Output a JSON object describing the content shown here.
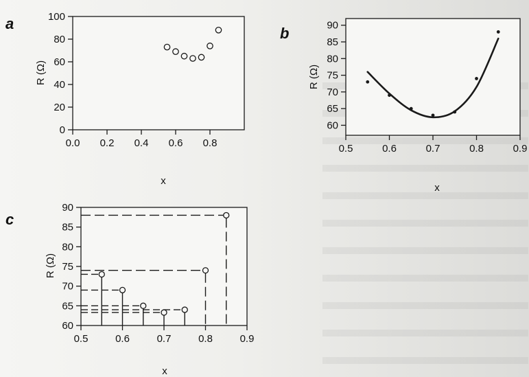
{
  "panels": [
    {
      "label": "a",
      "chart_data": {
        "type": "scatter",
        "xlabel": "x",
        "ylabel": "R (Ω)",
        "xlim": [
          0.0,
          1.0
        ],
        "ylim": [
          0,
          100
        ],
        "xticks": [
          "0.0",
          "0.2",
          "0.4",
          "0.6",
          "0.8"
        ],
        "yticks": [
          "0",
          "20",
          "40",
          "60",
          "80",
          "100"
        ],
        "marker": "open-circle",
        "series": [
          {
            "x": [
              0.55,
              0.6,
              0.65,
              0.7,
              0.75,
              0.8,
              0.85
            ],
            "y": [
              73,
              69,
              65,
              63,
              64,
              74,
              88
            ]
          }
        ],
        "grid": false
      }
    },
    {
      "label": "b",
      "chart_data": {
        "type": "scatter",
        "xlabel": "x",
        "ylabel": "R (Ω)",
        "xlim": [
          0.5,
          0.9
        ],
        "ylim": [
          57,
          92
        ],
        "xticks": [
          "0.5",
          "0.6",
          "0.7",
          "0.8",
          "0.9"
        ],
        "yticks": [
          "60",
          "65",
          "70",
          "75",
          "80",
          "85",
          "90"
        ],
        "marker": "dot",
        "series": [
          {
            "x": [
              0.55,
              0.6,
              0.65,
              0.7,
              0.75,
              0.8,
              0.85
            ],
            "y": [
              73,
              69,
              65,
              63,
              64,
              74,
              88
            ]
          }
        ],
        "fit_curve": {
          "x": [
            0.55,
            0.6,
            0.65,
            0.7,
            0.75,
            0.8,
            0.85
          ],
          "y": [
            76,
            69.5,
            64.5,
            62.4,
            64.2,
            71.5,
            86
          ]
        },
        "grid": false
      }
    },
    {
      "label": "c",
      "chart_data": {
        "type": "scatter",
        "xlabel": "x",
        "ylabel": "R (Ω)",
        "xlim": [
          0.5,
          0.9
        ],
        "ylim": [
          60,
          90
        ],
        "xticks": [
          "0.5",
          "0.6",
          "0.7",
          "0.8",
          "0.9"
        ],
        "yticks": [
          "60",
          "65",
          "70",
          "75",
          "80",
          "85",
          "90"
        ],
        "marker": "open-circle",
        "series": [
          {
            "x": [
              0.55,
              0.6,
              0.65,
              0.7,
              0.75,
              0.8,
              0.85
            ],
            "y": [
              73,
              69,
              65,
              63.3,
              64,
              74,
              88
            ]
          }
        ],
        "drop_lines": [
          {
            "x": 0.55,
            "style": "solid"
          },
          {
            "x": 0.6,
            "style": "solid"
          },
          {
            "x": 0.65,
            "style": "solid"
          },
          {
            "x": 0.7,
            "style": "solid"
          },
          {
            "x": 0.75,
            "style": "solid"
          },
          {
            "x": 0.8,
            "style": "dashed"
          },
          {
            "x": 0.85,
            "style": "dashed"
          }
        ],
        "grid": false
      }
    }
  ],
  "colors": {
    "ink": "#1a1a1a",
    "plot_bg": "#f7f7f5",
    "page_bg": "#efefed"
  }
}
